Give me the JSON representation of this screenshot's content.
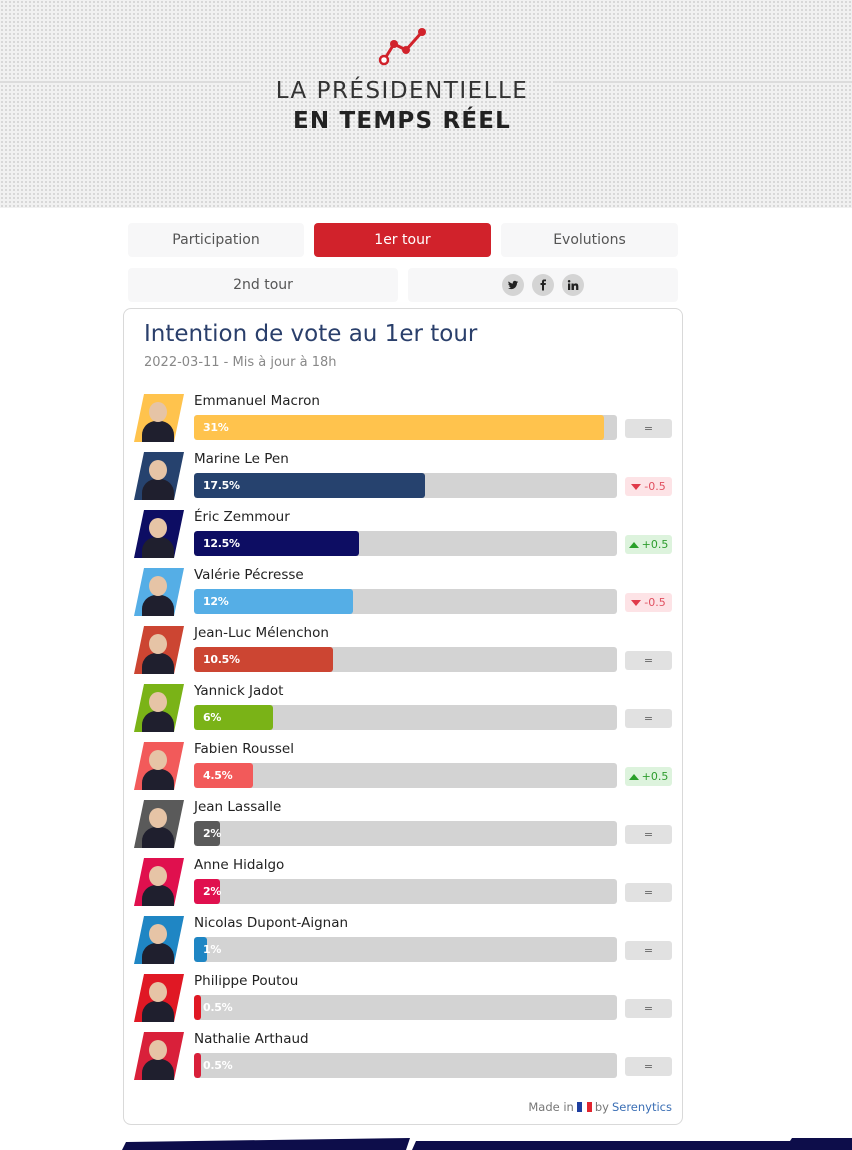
{
  "header": {
    "title_line1": "LA PRÉSIDENTIELLE",
    "title_line2": "EN TEMPS RÉEL",
    "logo_icon": "trend-line-icon",
    "accent_color": "#d1222b"
  },
  "tabs": [
    {
      "label": "Participation",
      "active": false
    },
    {
      "label": "1er tour",
      "active": true
    },
    {
      "label": "Evolutions",
      "active": false
    },
    {
      "label": "2nd tour",
      "active": false
    }
  ],
  "social": [
    "twitter-icon",
    "facebook-icon",
    "linkedin-icon"
  ],
  "card": {
    "title": "Intention de vote au 1er tour",
    "subtitle": "2022-03-11 - Mis à jour à 18h"
  },
  "chart_data": {
    "type": "bar",
    "orientation": "horizontal",
    "xlim": [
      0,
      32
    ],
    "categories": [
      "Emmanuel Macron",
      "Marine Le Pen",
      "Éric Zemmour",
      "Valérie Pécresse",
      "Jean-Luc Mélenchon",
      "Yannick Jadot",
      "Fabien Roussel",
      "Jean Lassalle",
      "Anne Hidalgo",
      "Nicolas Dupont-Aignan",
      "Philippe Poutou",
      "Nathalie Arthaud"
    ],
    "values": [
      31,
      17.5,
      12.5,
      12,
      10.5,
      6,
      4.5,
      2,
      2,
      1,
      0.5,
      0.5
    ],
    "value_labels": [
      "31%",
      "17.5%",
      "12.5%",
      "12%",
      "10.5%",
      "6%",
      "4.5%",
      "2%",
      "2%",
      "1%",
      "0.5%",
      "0.5%"
    ],
    "changes": [
      "=",
      "-0.5",
      "+0.5",
      "-0.5",
      "=",
      "=",
      "+0.5",
      "=",
      "=",
      "=",
      "=",
      "="
    ],
    "change_directions": [
      "same",
      "down",
      "up",
      "down",
      "same",
      "same",
      "up",
      "same",
      "same",
      "same",
      "same",
      "same"
    ],
    "colors": [
      "#ffc34d",
      "#26426e",
      "#0d0d63",
      "#55aee6",
      "#cc4532",
      "#7ab317",
      "#f25a5a",
      "#5a5a5a",
      "#e0104e",
      "#1f86c4",
      "#e01824",
      "#d9203a"
    ]
  },
  "footer": {
    "made_in": "Made in",
    "by": "by",
    "brand": "Serenytics"
  }
}
